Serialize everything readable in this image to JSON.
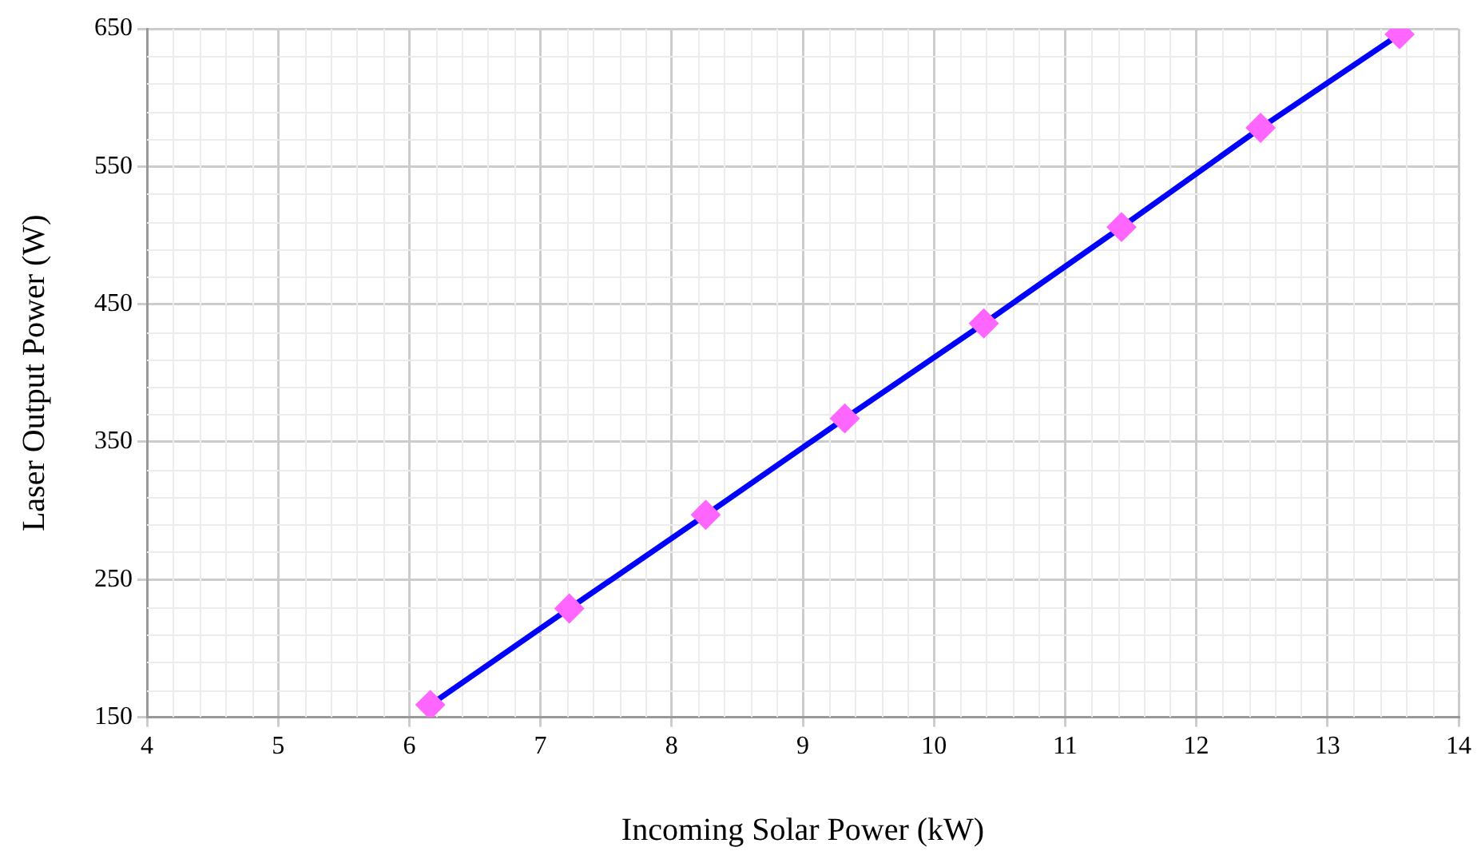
{
  "chart_data": {
    "type": "line",
    "xlabel": "Incoming Solar Power (kW)",
    "ylabel": "Laser Output Power (W)",
    "x": [
      6.16,
      7.22,
      8.26,
      9.32,
      10.38,
      11.43,
      12.49,
      13.55
    ],
    "series": [
      {
        "color": "#0000ff",
        "values": [
          159,
          229,
          297,
          367,
          436,
          506,
          578,
          646
        ]
      }
    ],
    "xlim": [
      4,
      14
    ],
    "xticks": [
      4,
      5,
      6,
      7,
      8,
      9,
      10,
      11,
      12,
      13,
      14
    ],
    "ylim": [
      150,
      650
    ],
    "yticks": [
      150,
      250,
      350,
      450,
      550,
      650
    ],
    "grid": true,
    "legend": false,
    "marker": "diamond",
    "line_style": "solid"
  }
}
